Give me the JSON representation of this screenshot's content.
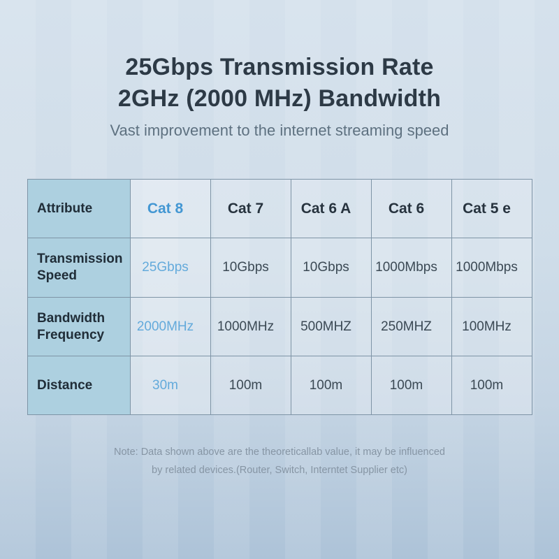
{
  "page": {
    "title_line1": "25Gbps Transmission Rate",
    "title_line2": "2GHz (2000 MHz) Bandwidth",
    "subtitle": "Vast improvement to the internet streaming speed",
    "note_line1": "Note: Data shown above are the theoreticallab value, it may be influenced",
    "note_line2": "by related devices.(Router, Switch, Interntet Supplier etc)"
  },
  "colors": {
    "background_top": "#d5e1ec",
    "background_bottom": "#adc3d8",
    "title_text": "#2d3a46",
    "subtitle_text": "#5e7180",
    "note_text": "#8695a4",
    "accent_blue_header": "#4397d3",
    "accent_blue_value": "#63aadb",
    "body_text": "#3b4954",
    "label_column_bg": "#add0e0",
    "grid_line": "#7e94a6"
  },
  "table": {
    "highlight_column": "Cat 8",
    "columns": [
      "Attribute",
      "Cat 8",
      "Cat 7",
      "Cat 6 A",
      "Cat 6",
      "Cat 5 e"
    ],
    "rows": [
      {
        "label": "Transmission Speed",
        "values": [
          "25Gbps",
          "10Gbps",
          "10Gbps",
          "1000Mbps",
          "1000Mbps"
        ]
      },
      {
        "label": "Bandwidth Frequency",
        "values": [
          "2000MHz",
          "1000MHz",
          "500MHZ",
          "250MHZ",
          "100MHz"
        ]
      },
      {
        "label": "Distance",
        "values": [
          "30m",
          "100m",
          "100m",
          "100m",
          "100m"
        ]
      }
    ]
  },
  "chart_data": {
    "type": "table",
    "title": "25Gbps Transmission Rate 2GHz (2000 MHz) Bandwidth",
    "subtitle": "Vast improvement to the internet streaming speed",
    "columns": [
      "Attribute",
      "Cat 8",
      "Cat 7",
      "Cat 6 A",
      "Cat 6",
      "Cat 5 e"
    ],
    "rows": [
      [
        "Transmission Speed",
        "25Gbps",
        "10Gbps",
        "10Gbps",
        "1000Mbps",
        "1000Mbps"
      ],
      [
        "Bandwidth Frequency",
        "2000MHz",
        "1000MHz",
        "500MHZ",
        "250MHZ",
        "100MHz"
      ],
      [
        "Distance",
        "30m",
        "100m",
        "100m",
        "100m",
        "100m"
      ]
    ],
    "note": "Note: Data shown above are the theoreticallab value, it may be influenced by related devices.(Router, Switch, Interntet Supplier etc)"
  }
}
